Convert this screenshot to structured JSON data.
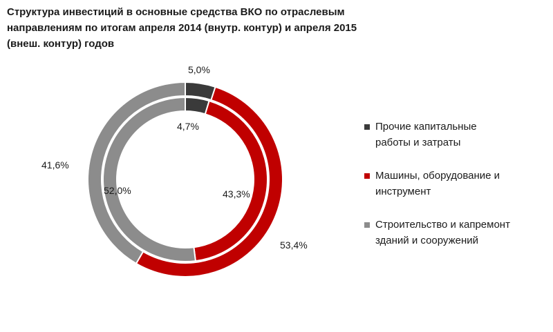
{
  "chart_data": {
    "type": "pie",
    "style": "doughnut",
    "title_lines": [
      "Структура инвестиций в основные средства ВКО по отраслевым",
      "направлениям  по итогам апреля 2014 (внутр. контур) и апреля  2015",
      "(внеш. контур) годов"
    ],
    "categories": [
      "Прочие капитальные\nработы и затраты",
      "Машины, оборудование и\nинструмент",
      "Строительство и капремонт\nзданий и сооружений"
    ],
    "colors": [
      "#3a3a3a",
      "#c00000",
      "#8c8c8c"
    ],
    "series": [
      {
        "ring": "inner",
        "values": [
          4.7,
          43.3,
          52.0
        ],
        "labels": [
          "4,7%",
          "43,3%",
          "52,0%"
        ]
      },
      {
        "ring": "outer",
        "values": [
          5.0,
          53.4,
          41.6
        ],
        "labels": [
          "5,0%",
          "53,4%",
          "41,6%"
        ]
      }
    ],
    "legend_position": "right"
  }
}
